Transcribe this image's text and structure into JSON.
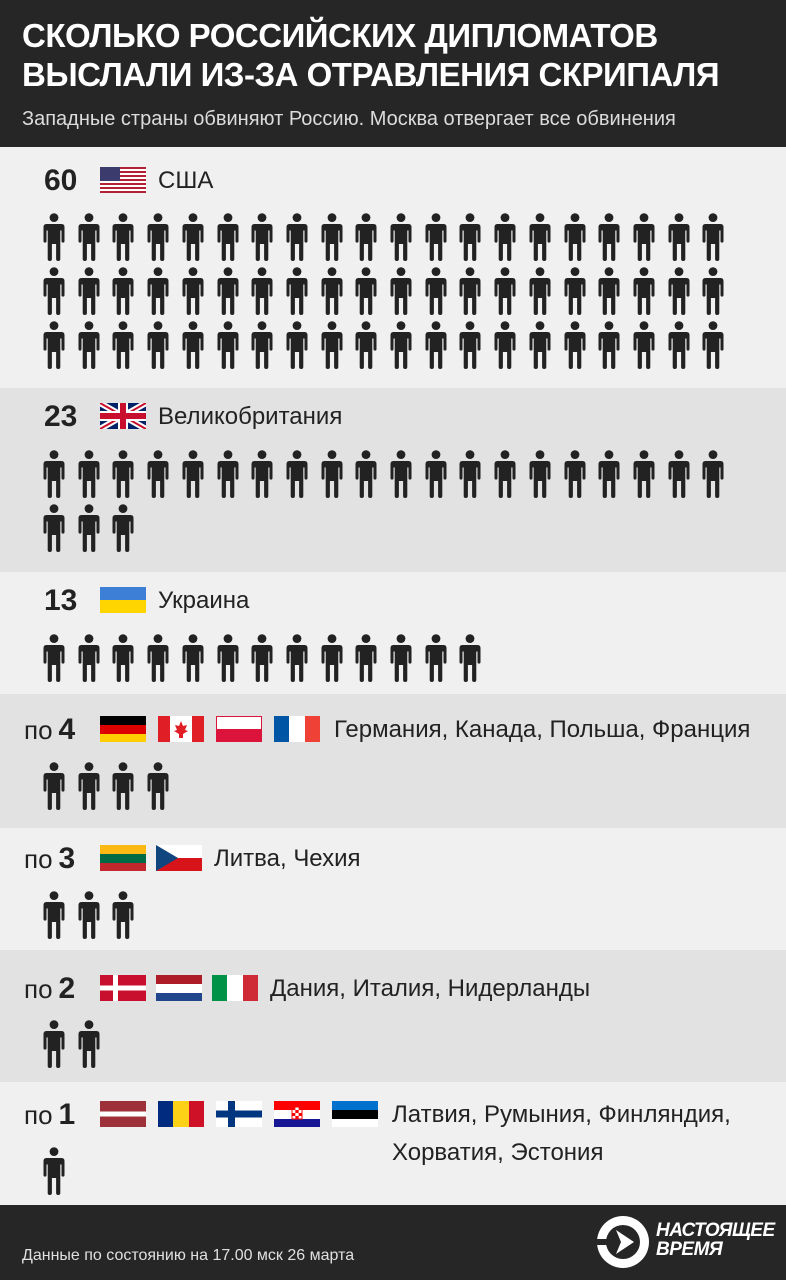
{
  "header": {
    "title": "Сколько российских дипломатов выслали из-за отравления Скрипаля",
    "subtitle": "Западные страны обвиняют Россию. Москва отвергает все обвинения"
  },
  "chart_data": {
    "type": "pictogram",
    "unit_icon": "person-icon",
    "rows": [
      {
        "prefix": "",
        "value": 60,
        "label": "США",
        "flags": [
          "us-flag"
        ]
      },
      {
        "prefix": "",
        "value": 23,
        "label": "Великобритания",
        "flags": [
          "uk-flag"
        ]
      },
      {
        "prefix": "",
        "value": 13,
        "label": "Украина",
        "flags": [
          "ukraine-flag"
        ]
      },
      {
        "prefix": "по",
        "value": 4,
        "label": "Германия, Канада, Польша, Франция",
        "flags": [
          "germany-flag",
          "canada-flag",
          "poland-flag",
          "france-flag"
        ]
      },
      {
        "prefix": "по",
        "value": 3,
        "label": "Литва, Чехия",
        "flags": [
          "lithuania-flag",
          "czech-flag"
        ]
      },
      {
        "prefix": "по",
        "value": 2,
        "label": "Дания, Италия, Нидерланды",
        "flags": [
          "denmark-flag",
          "netherlands-flag",
          "italy-flag"
        ]
      },
      {
        "prefix": "по",
        "value": 1,
        "label": "Латвия, Румыния, Финляндия, Хорватия, Эстония",
        "flags": [
          "latvia-flag",
          "romania-flag",
          "finland-flag",
          "croatia-flag",
          "estonia-flag"
        ]
      }
    ]
  },
  "footer": {
    "note": "Данные по состоянию на 17.00 мск 26 марта",
    "logo_line1": "настоящее",
    "logo_line2": "время"
  },
  "colors": {
    "header_bg": "#262626",
    "row_light": "#f0f0f0",
    "row_dark": "#e2e2e2",
    "icon": "#222222"
  }
}
